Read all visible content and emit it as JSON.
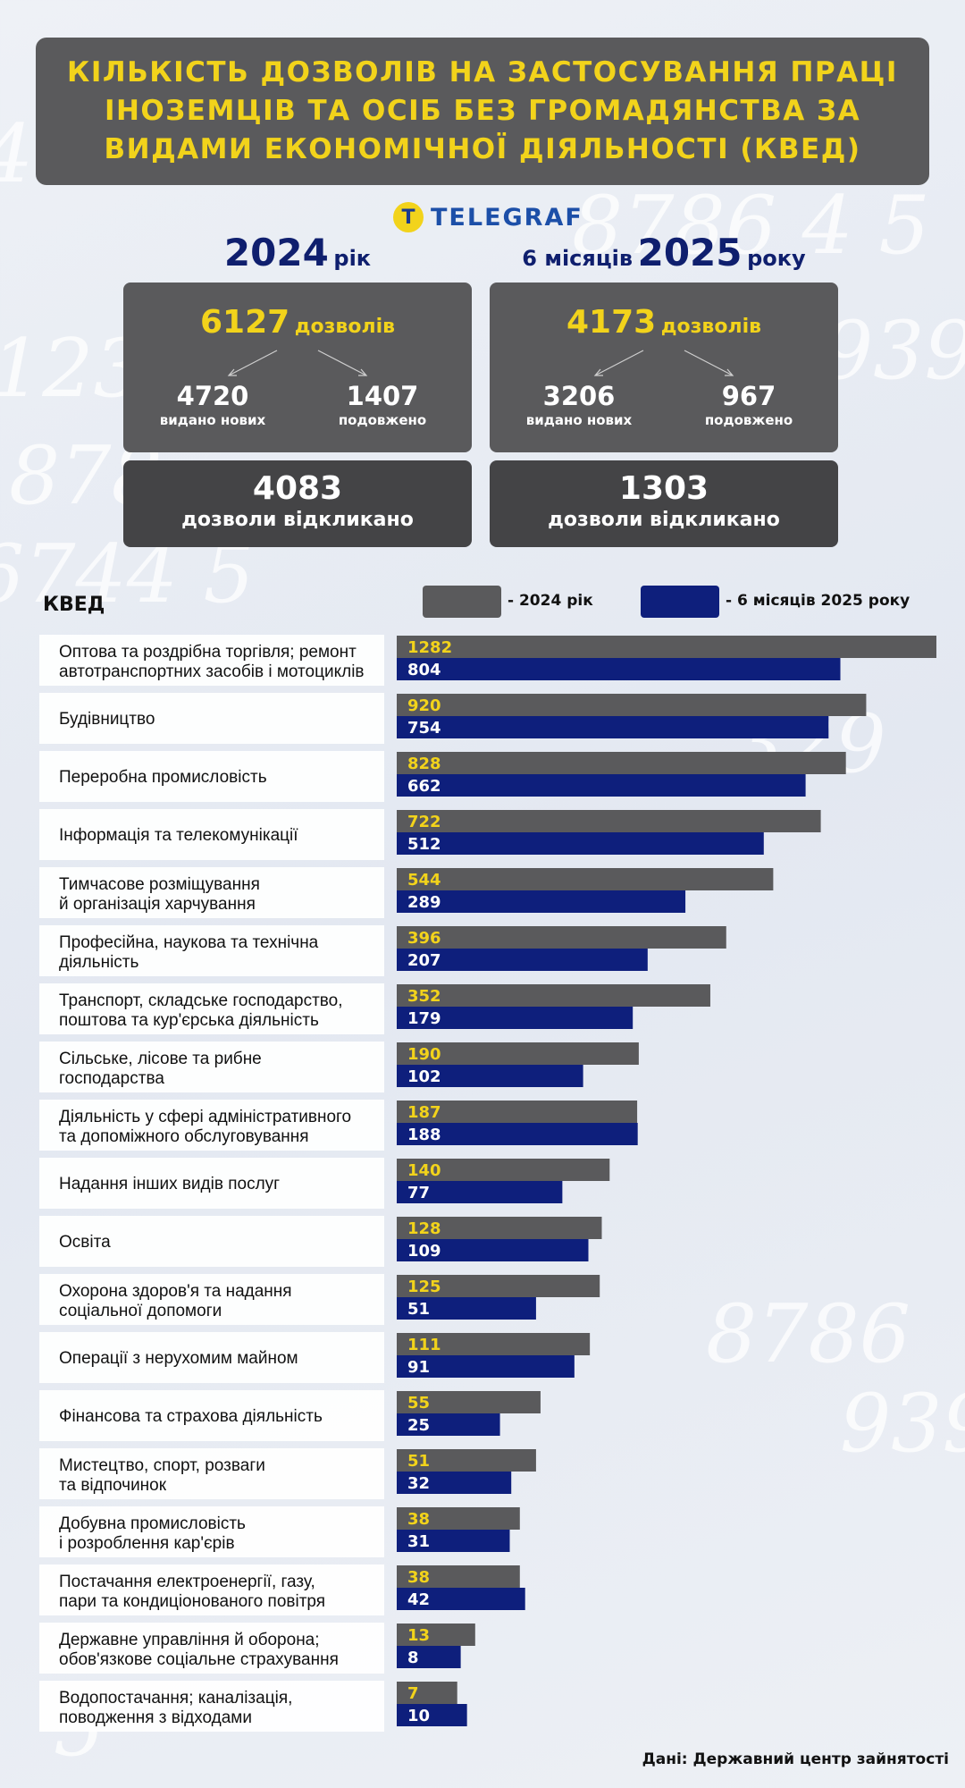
{
  "title": "Кількість дозволів на застосування праці іноземців та осіб без громадянства за видами економічної діяльності (КВЕД)",
  "logo": {
    "mark": "T",
    "text": "TELEGRAF"
  },
  "year_2024": {
    "title_big": "2024",
    "title_small": "рік",
    "total": "6127",
    "total_unit": "дозволів",
    "new_count": "4720",
    "new_label": "видано нових",
    "extended_count": "1407",
    "extended_label": "подовжено",
    "revoked_count": "4083",
    "revoked_label": "дозволи відкликано"
  },
  "year_2025": {
    "title_prefix": "6 місяців",
    "title_big": "2025",
    "title_small": "року",
    "total": "4173",
    "total_unit": "дозволів",
    "new_count": "3206",
    "new_label": "видано нових",
    "extended_count": "967",
    "extended_label": "подовжено",
    "revoked_count": "1303",
    "revoked_label": "дозволи відкликано"
  },
  "kved_label": "КВЕД",
  "legend": [
    {
      "text": "- 2024 рік",
      "color": "#5a5a5c"
    },
    {
      "text": "- 6 місяців 2025 року",
      "color": "#0e1f7c"
    }
  ],
  "source": "Дані: Державний центр зайнятості",
  "chart_data": {
    "type": "bar",
    "orientation": "horizontal",
    "categories": [
      "Оптова та роздрібна торгівля; ремонт\nавтотранспортних засобів і мотоциклів",
      "Будівництво",
      "Переробна промисловість",
      "Інформація та телекомунікації",
      "Тимчасове розміщування\nй організація харчування",
      "Професійна, наукова та технічна\nдіяльність",
      "Транспорт, складське господарство,\nпоштова та кур'єрська діяльність",
      "Сільське, лісове та рибне\nгосподарства",
      "Діяльність у сфері адміністративного\nта допоміжного обслуговування",
      "Надання інших видів послуг",
      "Освіта",
      "Охорона здоров'я та надання\nсоціальної допомоги",
      "Операції з нерухомим майном",
      "Фінансова та страхова діяльність",
      "Мистецтво, спорт, розваги\nта відпочинок",
      "Добувна промисловість\nі розроблення кар'єрів",
      "Постачання електроенергії, газу,\nпари та кондиціонованого повітря",
      "Державне управління й оборона;\nобов'язкове соціальне страхування",
      "Водопостачання; каналізація,\nповодження з відходами"
    ],
    "series": [
      {
        "name": "- 2024 рік",
        "color": "#5a5a5c",
        "label_color": "#f2d31b",
        "values": [
          1282,
          920,
          828,
          722,
          544,
          396,
          352,
          190,
          187,
          140,
          128,
          125,
          111,
          55,
          51,
          38,
          38,
          13,
          7
        ]
      },
      {
        "name": "- 6 місяців 2025 року",
        "color": "#0e1f7c",
        "label_color": "#ffffff",
        "values": [
          804,
          754,
          662,
          512,
          289,
          207,
          179,
          102,
          188,
          77,
          109,
          51,
          91,
          25,
          32,
          31,
          42,
          8,
          10
        ]
      }
    ]
  }
}
